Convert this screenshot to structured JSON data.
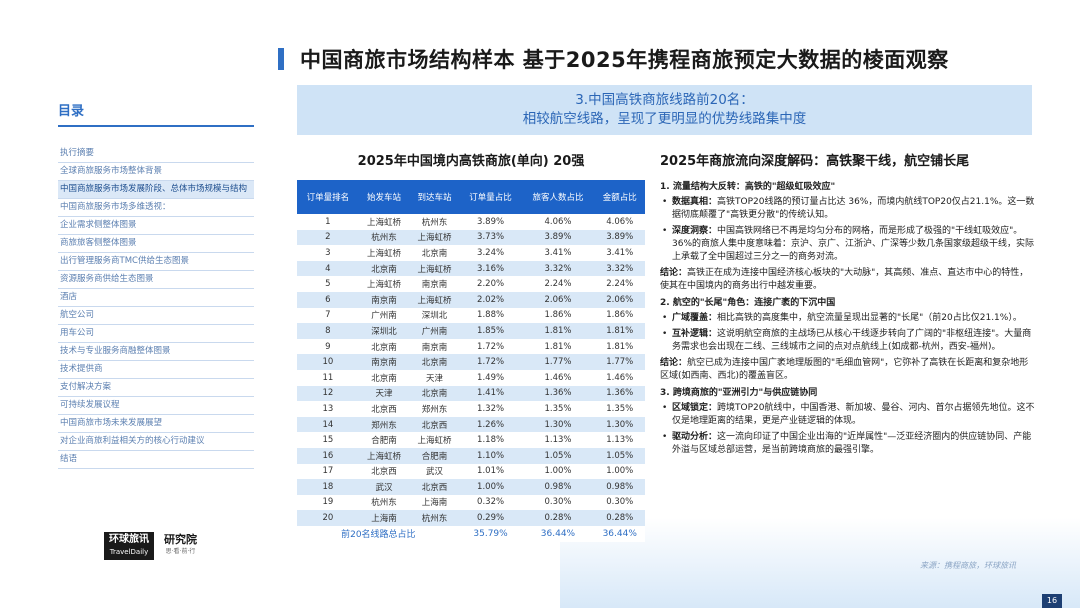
{
  "page_title": "中国商旅市场结构样本 基于2025年携程商旅预定大数据的棱面观察",
  "sidebar": {
    "heading": "目录",
    "items": [
      {
        "label": "执行摘要",
        "active": false
      },
      {
        "label": "全球商旅服务市场整体背景",
        "active": false
      },
      {
        "label": "中国商旅服务市场发展阶段、总体市场规模与结构",
        "active": true
      },
      {
        "label": "中国商旅服务市场多维透视：",
        "active": false
      },
      {
        "label": "企业需求侧整体图景",
        "active": false
      },
      {
        "label": "商旅旅客侧整体图景",
        "active": false
      },
      {
        "label": "出行管理服务商TMC供给生态图景",
        "active": false
      },
      {
        "label": "资源服务商供给生态图景",
        "active": false
      },
      {
        "label": "酒店",
        "active": false
      },
      {
        "label": "航空公司",
        "active": false
      },
      {
        "label": "用车公司",
        "active": false
      },
      {
        "label": "技术与专业服务商融整体图景",
        "active": false
      },
      {
        "label": "技术提供商",
        "active": false
      },
      {
        "label": "支付解决方案",
        "active": false
      },
      {
        "label": "可持续发展议程",
        "active": false
      },
      {
        "label": "中国商旅市场未来发展展望",
        "active": false
      },
      {
        "label": "对企业商旅利益相关方的核心行动建议",
        "active": false
      },
      {
        "label": "结语",
        "active": false
      }
    ]
  },
  "logos": {
    "a_main": "环球旅讯",
    "a_sub": "TravelDaily",
    "b_main": "研究院",
    "b_sub": "思·看·前·行"
  },
  "banner": {
    "line1": "3.中国高铁商旅线路前20名：",
    "line2": "相较航空线路，呈现了更明显的优势线路集中度"
  },
  "table": {
    "title": "2025年中国境内高铁商旅(单向) 20强",
    "headers": [
      "订单量排名",
      "始发车站",
      "到达车站",
      "订单量占比",
      "旅客人数占比",
      "金额占比"
    ],
    "rows": [
      [
        "1",
        "上海虹桥",
        "杭州东",
        "3.89%",
        "4.06%",
        "4.06%"
      ],
      [
        "2",
        "杭州东",
        "上海虹桥",
        "3.73%",
        "3.89%",
        "3.89%"
      ],
      [
        "3",
        "上海虹桥",
        "北京南",
        "3.24%",
        "3.41%",
        "3.41%"
      ],
      [
        "4",
        "北京南",
        "上海虹桥",
        "3.16%",
        "3.32%",
        "3.32%"
      ],
      [
        "5",
        "上海虹桥",
        "南京南",
        "2.20%",
        "2.24%",
        "2.24%"
      ],
      [
        "6",
        "南京南",
        "上海虹桥",
        "2.02%",
        "2.06%",
        "2.06%"
      ],
      [
        "7",
        "广州南",
        "深圳北",
        "1.88%",
        "1.86%",
        "1.86%"
      ],
      [
        "8",
        "深圳北",
        "广州南",
        "1.85%",
        "1.81%",
        "1.81%"
      ],
      [
        "9",
        "北京南",
        "南京南",
        "1.72%",
        "1.81%",
        "1.81%"
      ],
      [
        "10",
        "南京南",
        "北京南",
        "1.72%",
        "1.77%",
        "1.77%"
      ],
      [
        "11",
        "北京南",
        "天津",
        "1.49%",
        "1.46%",
        "1.46%"
      ],
      [
        "12",
        "天津",
        "北京南",
        "1.41%",
        "1.36%",
        "1.36%"
      ],
      [
        "13",
        "北京西",
        "郑州东",
        "1.32%",
        "1.35%",
        "1.35%"
      ],
      [
        "14",
        "郑州东",
        "北京西",
        "1.26%",
        "1.30%",
        "1.30%"
      ],
      [
        "15",
        "合肥南",
        "上海虹桥",
        "1.18%",
        "1.13%",
        "1.13%"
      ],
      [
        "16",
        "上海虹桥",
        "合肥南",
        "1.10%",
        "1.05%",
        "1.05%"
      ],
      [
        "17",
        "北京西",
        "武汉",
        "1.01%",
        "1.00%",
        "1.00%"
      ],
      [
        "18",
        "武汉",
        "北京西",
        "1.00%",
        "0.98%",
        "0.98%"
      ],
      [
        "19",
        "杭州东",
        "上海南",
        "0.32%",
        "0.30%",
        "0.30%"
      ],
      [
        "20",
        "上海南",
        "杭州东",
        "0.29%",
        "0.28%",
        "0.28%"
      ]
    ],
    "footer": {
      "label": "前20名线路总占比",
      "order": "35.79%",
      "passenger": "36.44%",
      "amount": "36.44%"
    }
  },
  "analysis": {
    "title": "2025年商旅流向深度解码：高铁聚干线，航空铺长尾",
    "s1_head": "1. 流量结构大反转：高铁的\"超级虹吸效应\"",
    "s1_b1_label": "数据真相：",
    "s1_b1_text": "高铁TOP20线路的预订量占比达 36%，而境内航线TOP20仅占21.1%。这一数据彻底颠覆了\"高铁更分散\"的传统认知。",
    "s1_b2_label": "深度洞察：",
    "s1_b2_text": "中国高铁网络已不再是均匀分布的网格，而是形成了极强的\"干线虹吸效应\"。36%的商旅人集中度意味着：京沪、京广、江浙沪、广深等少数几条国家级超级干线，实际上承载了全中国超过三分之一的商务对流。",
    "s1_concl_label": "结论：",
    "s1_concl_text": "高铁正在成为连接中国经济核心板块的\"大动脉\"，其高频、准点、直达市中心的特性，使其在中国境内的商务出行中越发重要。",
    "s2_head": "2. 航空的\"长尾\"角色：连接广袤的下沉中国",
    "s2_b1_label": "广域覆盖：",
    "s2_b1_text": "相比高铁的高度集中，航空流量呈现出显著的\"长尾\"（前20占比仅21.1%）。",
    "s2_b2_label": "互补逻辑：",
    "s2_b2_text": "这说明航空商旅的主战场已从核心干线逐步转向了广阔的\"非枢纽连接\"。大量商务需求也会出现在二线、三线城市之间的点对点航线上(如成都-杭州，西安-福州)。",
    "s2_concl_label": "结论：",
    "s2_concl_text": "航空已成为连接中国广袤地理版图的\"毛细血管网\"，它弥补了高铁在长距离和复杂地形区域(如西南、西北)的覆盖盲区。",
    "s3_head": "3. 跨境商旅的\"亚洲引力\"与供应链协同",
    "s3_b1_label": "区域锁定：",
    "s3_b1_text": "跨境TOP20航线中，中国香港、新加坡、曼谷、河内、首尔占据领先地位。这不仅是地理距离的结果，更是产业链逻辑的体现。",
    "s3_b2_label": "驱动分析：",
    "s3_b2_text": "这一流向印证了中国企业出海的\"近岸属性\"—泛亚经济圈内的供应链协同、产能外溢与区域总部运营，是当前跨境商旅的最强引擎。"
  },
  "source": "来源：携程商旅，环球旅讯",
  "page_number": "16"
}
